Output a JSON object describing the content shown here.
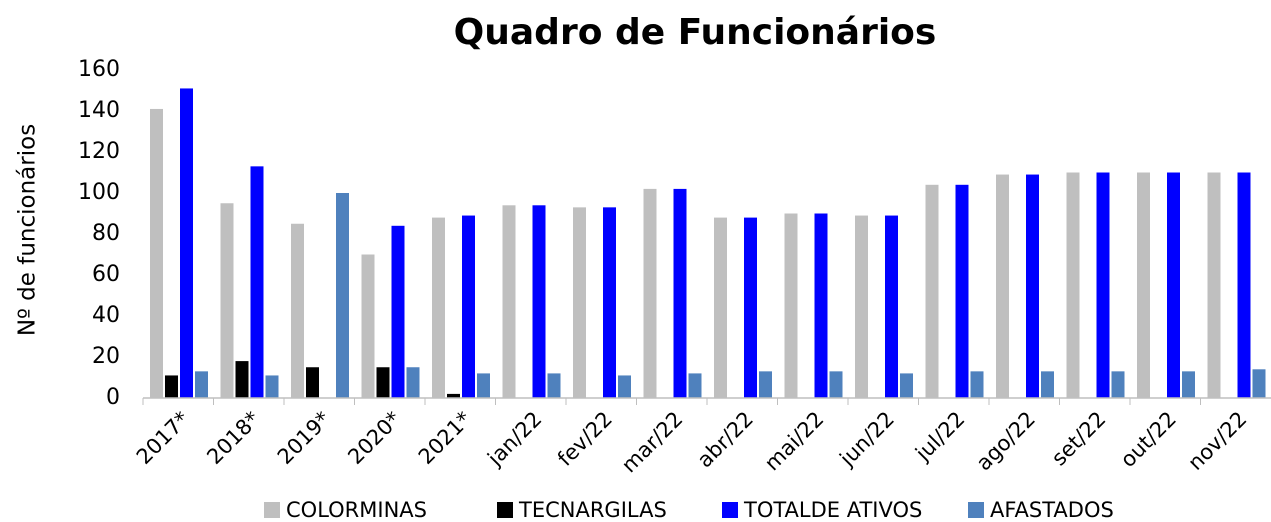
{
  "chart_data": {
    "type": "bar",
    "title": "Quadro de Funcionários",
    "y_label": "Nº de funcionários",
    "categories": [
      "2017*",
      "2018*",
      "2019*",
      "2020*",
      "2021*",
      "jan/22",
      "fev/22",
      "mar/22",
      "abr/22",
      "mai/22",
      "jun/22",
      "jul/22",
      "ago/22",
      "set/22",
      "out/22",
      "nov/22"
    ],
    "series": [
      {
        "name": "COLORMINAS",
        "color": "#bfbfbf",
        "values": [
          141,
          95,
          85,
          70,
          88,
          94,
          93,
          102,
          88,
          90,
          89,
          104,
          109,
          110,
          110,
          110
        ]
      },
      {
        "name": "TECNARGILAS",
        "color": "#000000",
        "values": [
          11,
          18,
          15,
          15,
          2,
          null,
          null,
          null,
          null,
          null,
          null,
          null,
          null,
          null,
          null,
          null
        ]
      },
      {
        "name": "TOTALDE ATIVOS",
        "color": "#0000ff",
        "values": [
          151,
          113,
          null,
          84,
          89,
          94,
          93,
          102,
          88,
          90,
          89,
          104,
          109,
          110,
          110,
          110
        ]
      },
      {
        "name": "AFASTADOS",
        "color": "#4f81bd",
        "values": [
          13,
          11,
          100,
          15,
          12,
          12,
          11,
          12,
          13,
          13,
          12,
          13,
          13,
          13,
          13,
          14
        ]
      }
    ],
    "ylim": [
      0,
      160
    ],
    "yticks": [
      0,
      20,
      40,
      60,
      80,
      100,
      120,
      140,
      160
    ],
    "grid": false,
    "legend": "bottom"
  }
}
